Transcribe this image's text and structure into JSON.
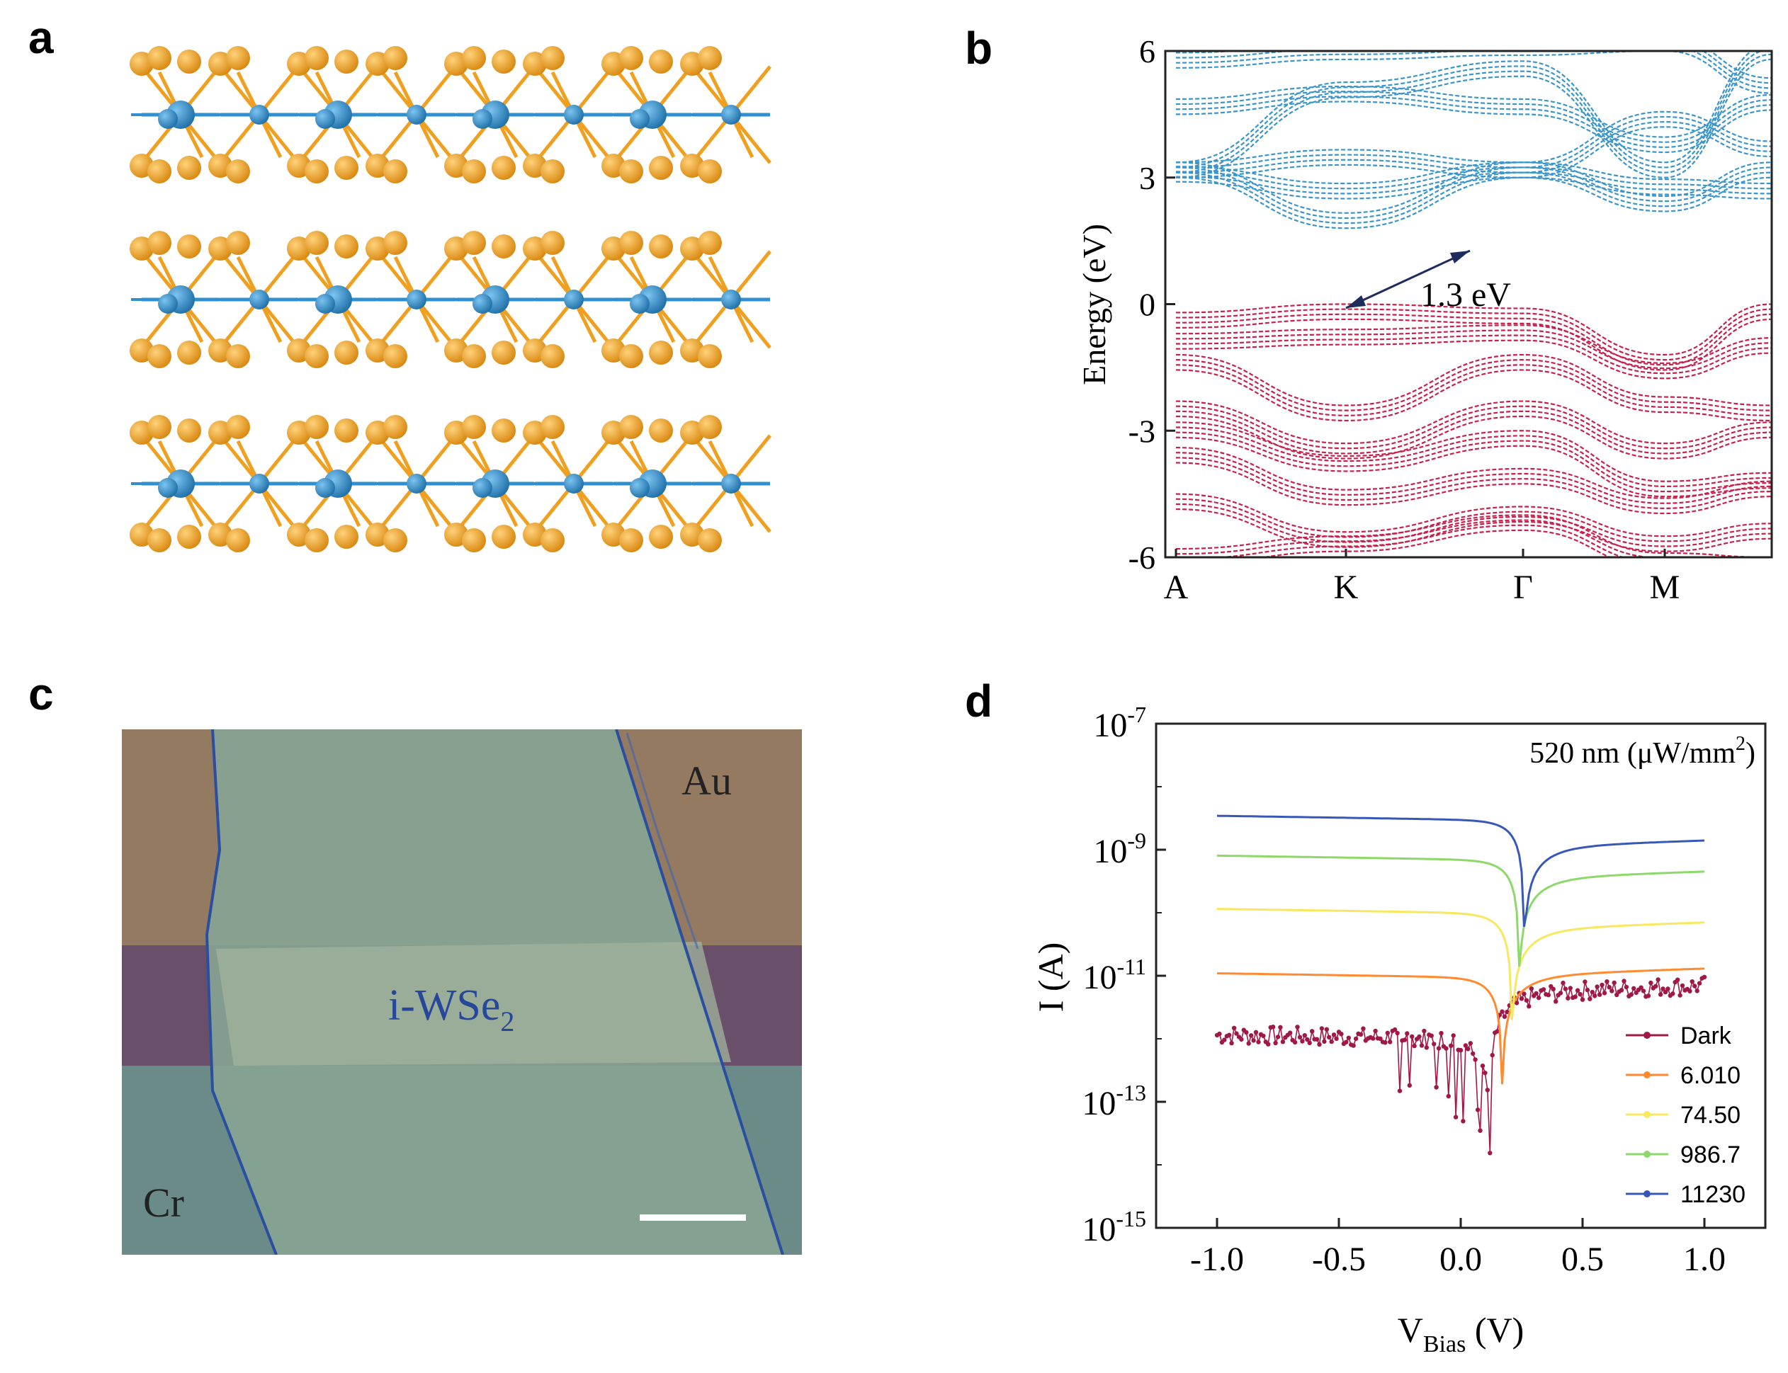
{
  "panels": {
    "a": {
      "label": "a"
    },
    "b": {
      "label": "b"
    },
    "c": {
      "label": "c",
      "material": "i-WSe",
      "material_sub": "2",
      "electrode_top": "Au",
      "electrode_bottom": "Cr"
    },
    "d": {
      "label": "d"
    }
  },
  "colors": {
    "W_atom": "#2f8fcf",
    "Se_atom": "#f0a020",
    "conduction": "#3a95cc",
    "valence": "#c8204a",
    "dark": "#a01848",
    "p6": "#ff8a30",
    "p74": "#f7e860",
    "p986": "#8ed86a",
    "p11230": "#3858b8"
  },
  "chart_data": [
    {
      "panel": "b",
      "type": "line",
      "title": "",
      "xlabel": "",
      "ylabel": "Energy (eV)",
      "ylim": [
        -6,
        6
      ],
      "yticks": [
        "6",
        "3",
        "0",
        "-3",
        "-6"
      ],
      "xticks": [
        "A",
        "K",
        "Γ",
        "M"
      ],
      "annotation": "1.3 eV",
      "gap": {
        "from_k": "K",
        "vbm": 0.0,
        "cbm": 1.3
      }
    },
    {
      "panel": "d",
      "type": "line",
      "yscale": "log",
      "title": "520 nm (μW/mm",
      "title_sup": "2",
      "title_end": ")",
      "xlabel": "V",
      "xlabel_sub": "Bias",
      "xlabel_end": " (V)",
      "ylabel": "I (A)",
      "xlim": [
        -1.25,
        1.25
      ],
      "ylim_exp": [
        -15,
        -7
      ],
      "xticks": [
        "-1.0",
        "-0.5",
        "0.0",
        "0.5",
        "1.0"
      ],
      "ytick_base": "10",
      "ytick_exps": [
        "-7",
        "-9",
        "-11",
        "-13",
        "-15"
      ],
      "series": [
        {
          "name": "Dark",
          "color_key": "dark",
          "I_neg": 1e-12,
          "I_pos": 7e-12,
          "v0": 0.12
        },
        {
          "name": "6.010",
          "color_key": "p6",
          "I_neg": 9.5e-12,
          "I_pos": 1.3e-11,
          "v0": 0.17
        },
        {
          "name": "74.50",
          "color_key": "p74",
          "I_neg": 1e-10,
          "I_pos": 7e-11,
          "v0": 0.21
        },
        {
          "name": "986.7",
          "color_key": "p986",
          "I_neg": 7e-10,
          "I_pos": 4.5e-10,
          "v0": 0.24
        },
        {
          "name": "11230",
          "color_key": "p11230",
          "I_neg": 3e-09,
          "I_pos": 1.4e-09,
          "v0": 0.26
        }
      ]
    }
  ]
}
